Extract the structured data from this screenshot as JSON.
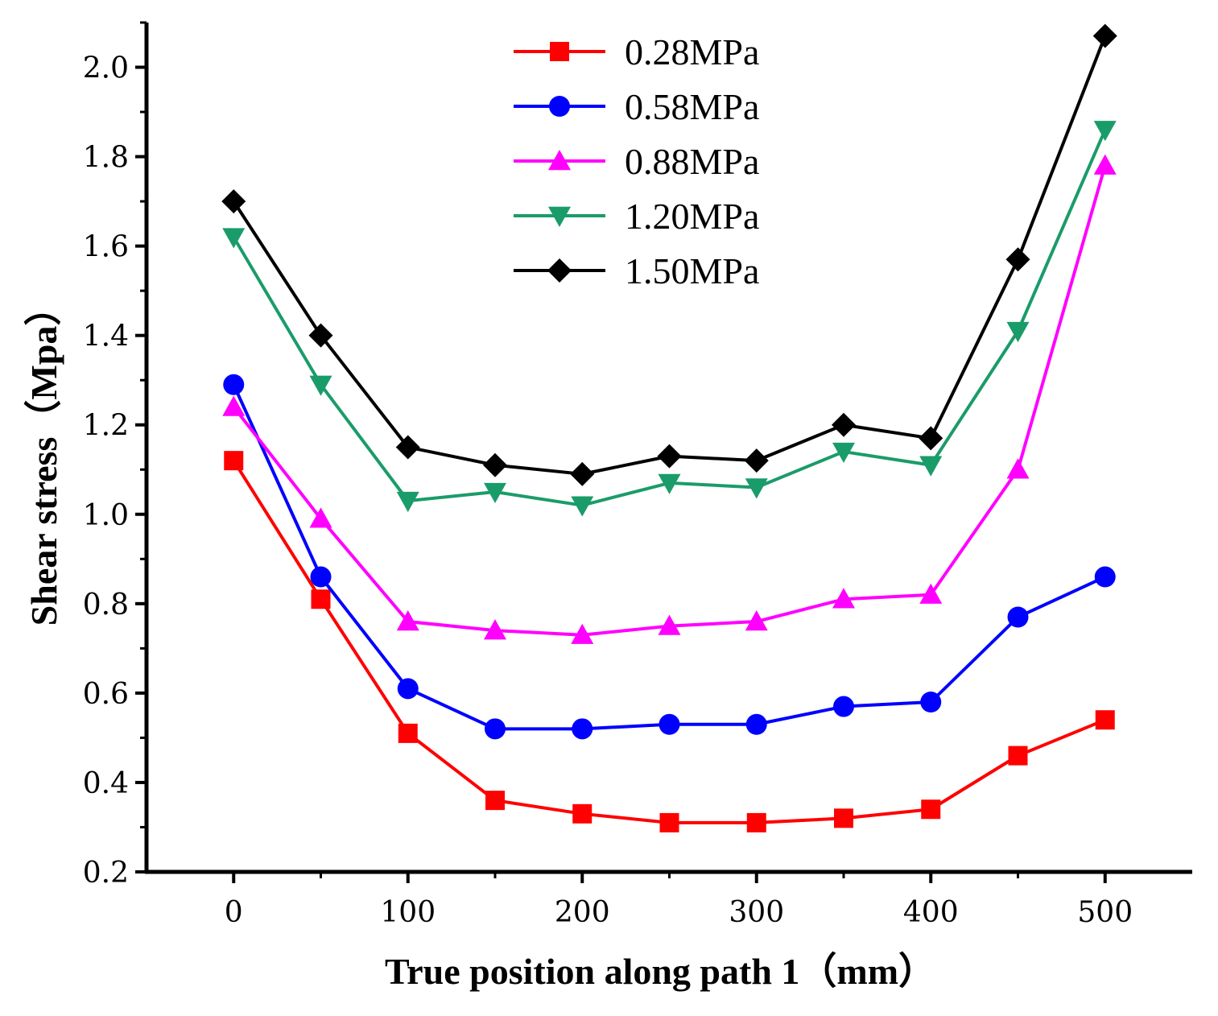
{
  "chart_data": {
    "type": "line",
    "xlabel": "True position along path 1（mm）",
    "ylabel": "Shear stress（Mpa）",
    "xlim": [
      -50,
      550
    ],
    "ylim": [
      0.2,
      2.1
    ],
    "x_ticks": [
      0,
      100,
      200,
      300,
      400,
      500
    ],
    "y_ticks": [
      0.2,
      0.4,
      0.6,
      0.8,
      1.0,
      1.2,
      1.4,
      1.6,
      1.8,
      2.0
    ],
    "y_tick_labels": [
      "0.2",
      "0.4",
      "0.6",
      "0.8",
      "1.0",
      "1.2",
      "1.4",
      "1.6",
      "1.8",
      "2.0"
    ],
    "x_tick_labels": [
      "0",
      "100",
      "200",
      "300",
      "400",
      "500"
    ],
    "x": [
      0,
      50,
      100,
      150,
      200,
      250,
      300,
      350,
      400,
      450,
      500
    ],
    "legend_position": "top-center",
    "grid": false,
    "series": [
      {
        "name": "0.28MPa",
        "color": "#ff0000",
        "marker": "square",
        "values": [
          1.12,
          0.81,
          0.51,
          0.36,
          0.33,
          0.31,
          0.31,
          0.32,
          0.34,
          0.46,
          0.54
        ]
      },
      {
        "name": "0.58MPa",
        "color": "#0000ff",
        "marker": "circle",
        "values": [
          1.29,
          0.86,
          0.61,
          0.52,
          0.52,
          0.53,
          0.53,
          0.57,
          0.58,
          0.77,
          0.86
        ]
      },
      {
        "name": "0.88MPa",
        "color": "#ff00ff",
        "marker": "triangle-up",
        "values": [
          1.24,
          0.99,
          0.76,
          0.74,
          0.73,
          0.75,
          0.76,
          0.81,
          0.82,
          1.1,
          1.78
        ]
      },
      {
        "name": "1.20MPa",
        "color": "#1a9c6a",
        "marker": "triangle-down",
        "values": [
          1.62,
          1.29,
          1.03,
          1.05,
          1.02,
          1.07,
          1.06,
          1.14,
          1.11,
          1.41,
          1.86
        ]
      },
      {
        "name": "1.50MPa",
        "color": "#000000",
        "marker": "diamond",
        "values": [
          1.7,
          1.4,
          1.15,
          1.11,
          1.09,
          1.13,
          1.12,
          1.2,
          1.17,
          1.57,
          2.07
        ]
      }
    ]
  }
}
